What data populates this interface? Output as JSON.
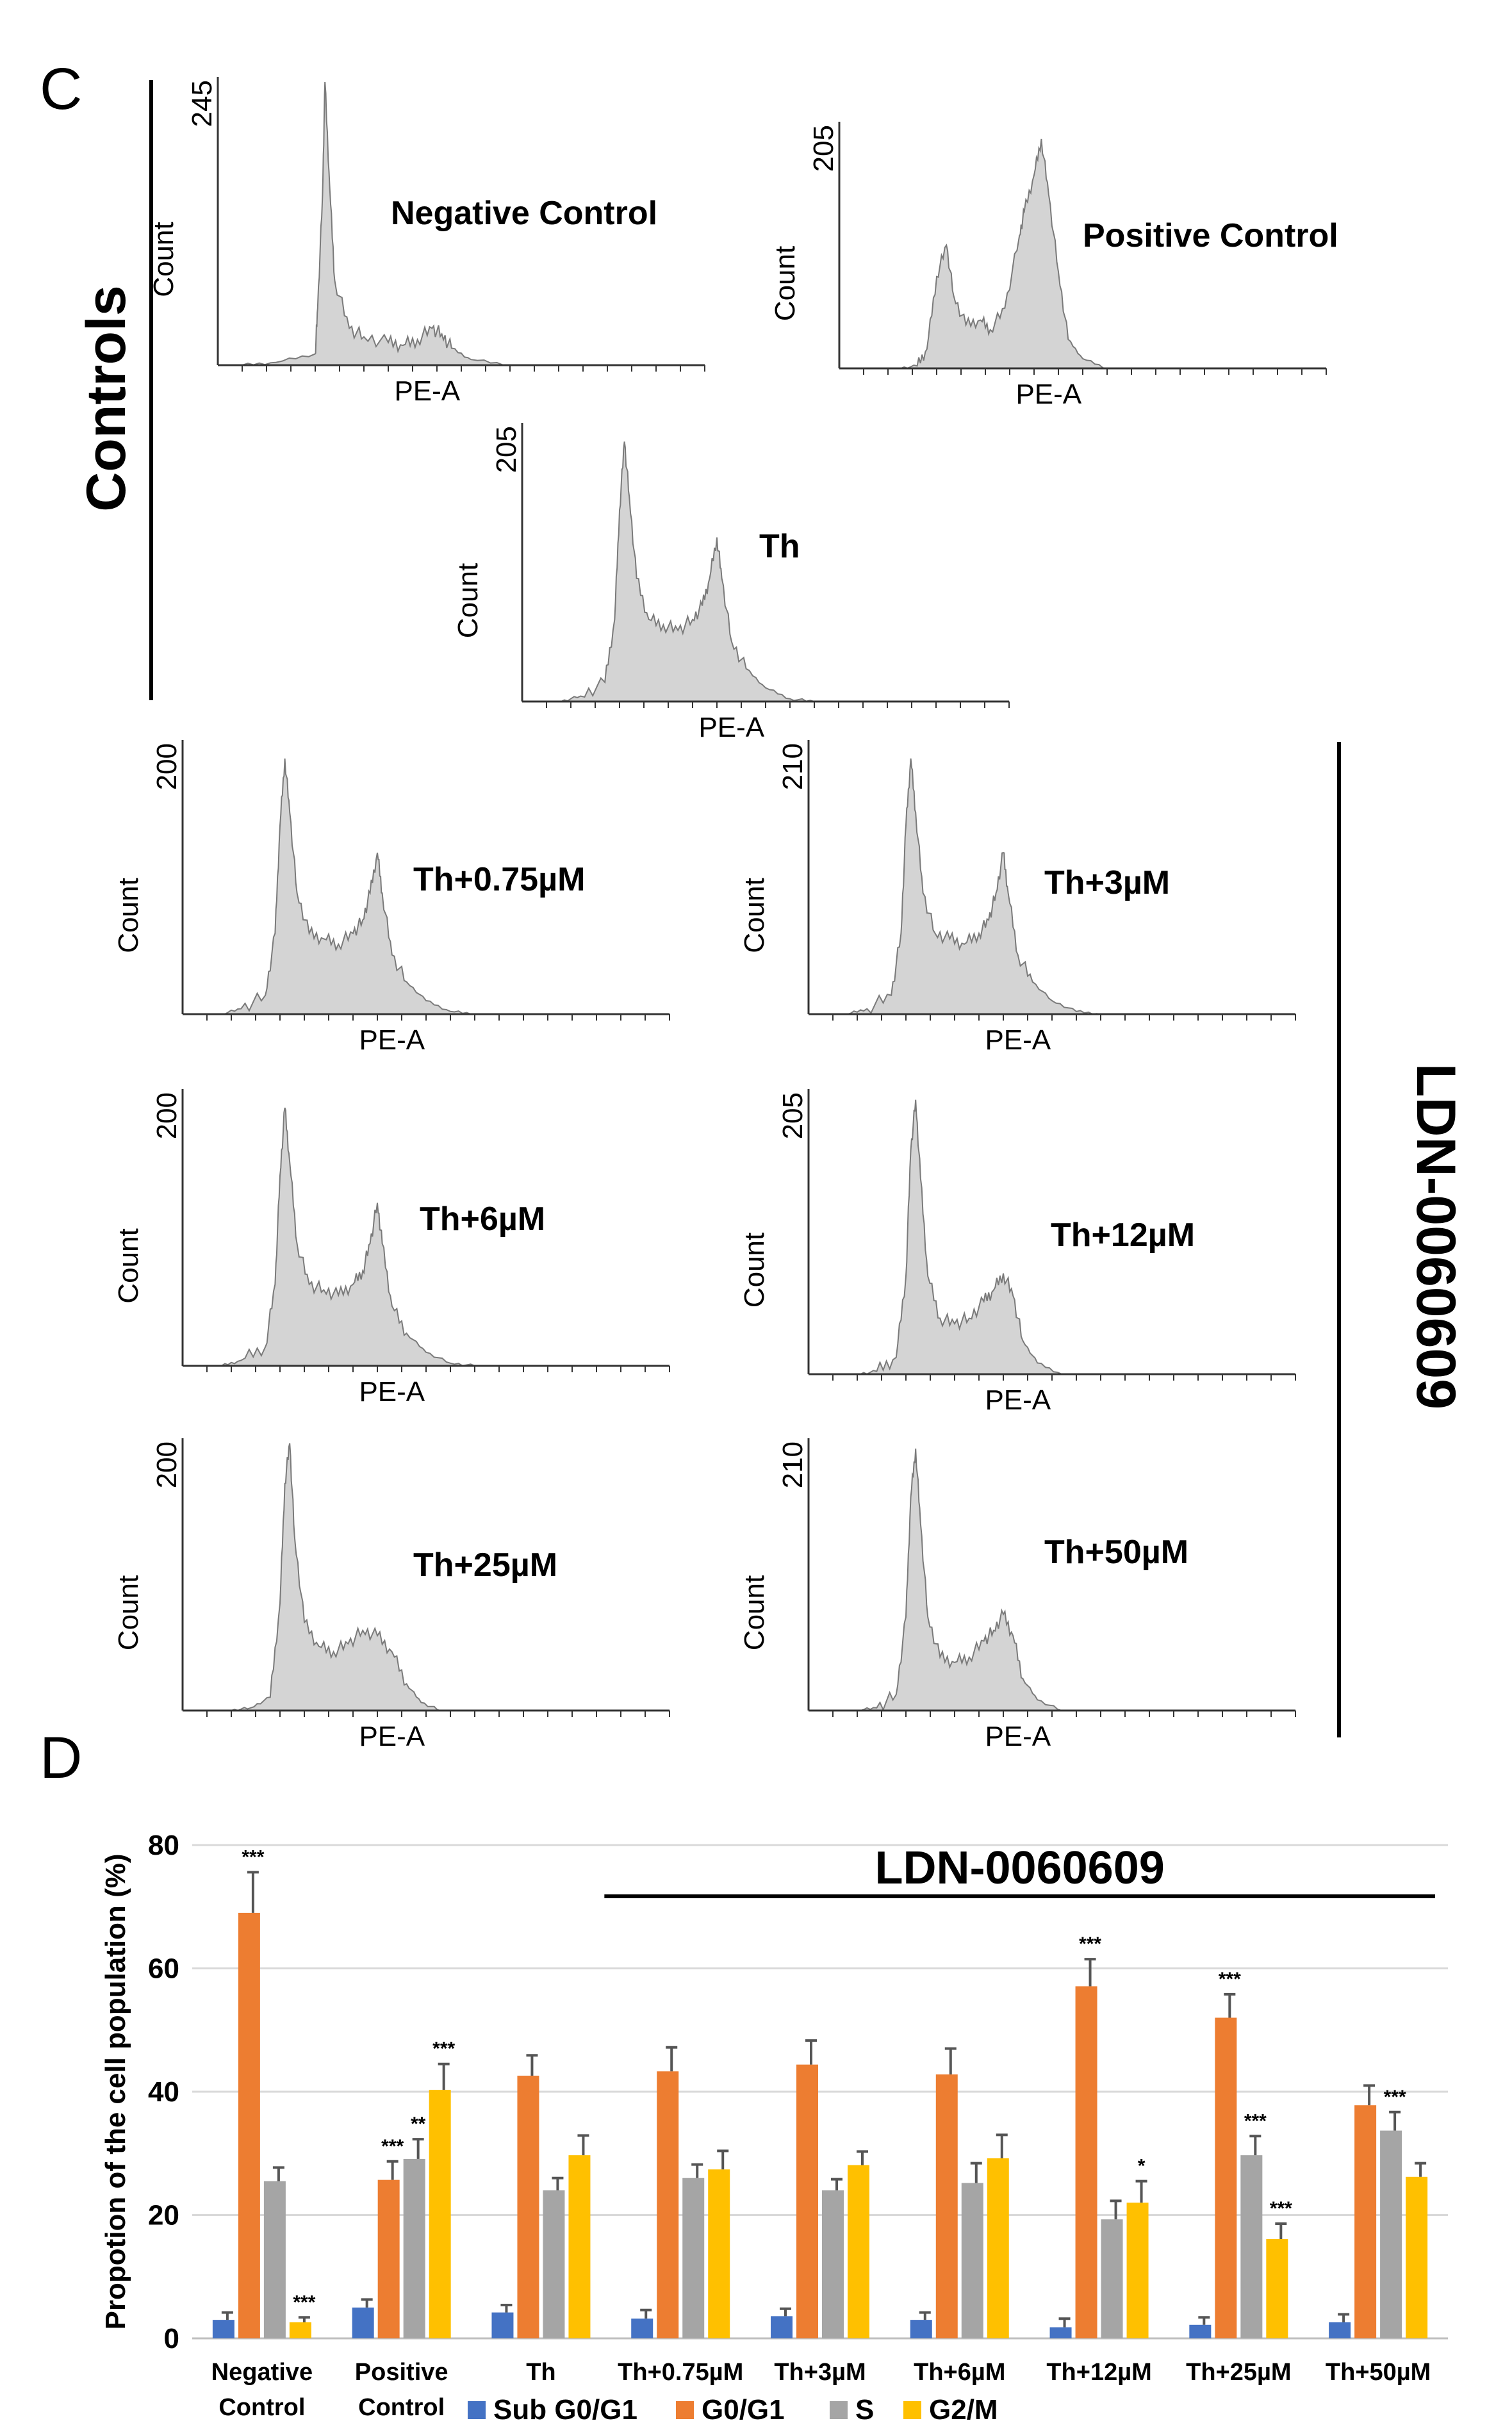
{
  "panel_c_label": "C",
  "panel_d_label": "D",
  "controls_label": "Controls",
  "ldn_label": "LDN-0060609",
  "colors": {
    "hist_fill": "#d4d4d4",
    "hist_line": "#7a7a7a",
    "sub": "#4472c4",
    "g0g1": "#ed7d31",
    "s": "#a5a5a5",
    "g2m": "#ffc000",
    "grid": "#d9d9d9",
    "error": "#555555"
  },
  "histograms": [
    {
      "title": "Negative Control",
      "ymax": "245",
      "ylabel": "Count",
      "xlabel": "PE-A",
      "shape": "neg"
    },
    {
      "title": "Positive Control",
      "ymax": "205",
      "ylabel": "Count",
      "xlabel": "PE-A",
      "shape": "pos"
    },
    {
      "title": "Th",
      "ymax": "205",
      "ylabel": "Count",
      "xlabel": "PE-A",
      "shape": "th"
    },
    {
      "title": "Th+0.75µM",
      "ymax": "200",
      "ylabel": "Count",
      "xlabel": "PE-A",
      "shape": "th"
    },
    {
      "title": "Th+3µM",
      "ymax": "210",
      "ylabel": "Count",
      "xlabel": "PE-A",
      "shape": "th"
    },
    {
      "title": "Th+6µM",
      "ymax": "200",
      "ylabel": "Count",
      "xlabel": "PE-A",
      "shape": "th"
    },
    {
      "title": "Th+12µM",
      "ymax": "205",
      "ylabel": "Count",
      "xlabel": "PE-A",
      "shape": "g1"
    },
    {
      "title": "Th+25µM",
      "ymax": "200",
      "ylabel": "Count",
      "xlabel": "PE-A",
      "shape": "g1low"
    },
    {
      "title": "Th+50µM",
      "ymax": "210",
      "ylabel": "Count",
      "xlabel": "PE-A",
      "shape": "g1"
    }
  ],
  "chart_data": {
    "type": "bar",
    "title": "LDN-0060609",
    "xlabel": "",
    "ylabel": "Propotion of the cell population (%)",
    "ylim": [
      0,
      80
    ],
    "yticks": [
      0,
      20,
      40,
      60,
      80
    ],
    "grid": true,
    "legend_position": "bottom",
    "categories": [
      [
        "Negative",
        "Control"
      ],
      [
        "Positive",
        "Control"
      ],
      [
        "Th"
      ],
      [
        "Th+0.75µM"
      ],
      [
        "Th+3µM"
      ],
      [
        "Th+6µM"
      ],
      [
        "Th+12µM"
      ],
      [
        "Th+25µM"
      ],
      [
        "Th+50µM"
      ]
    ],
    "series": [
      {
        "name": "Sub G0/G1",
        "color": "#4472c4",
        "values": [
          3,
          5,
          4.2,
          3.2,
          3.6,
          3,
          1.8,
          2.2,
          2.6
        ],
        "errors": [
          1.2,
          1.3,
          1.2,
          1.4,
          1.2,
          1.2,
          1.4,
          1.2,
          1.3
        ],
        "sig": [
          "",
          "",
          "",
          "",
          "",
          "",
          "",
          "",
          ""
        ]
      },
      {
        "name": "G0/G1",
        "color": "#ed7d31",
        "values": [
          69,
          25.7,
          42.6,
          43.3,
          44.4,
          42.8,
          57.1,
          52,
          37.8
        ],
        "errors": [
          6.6,
          3,
          3.3,
          3.9,
          3.9,
          4.2,
          4.4,
          3.8,
          3.2
        ],
        "sig": [
          "***",
          "***",
          "",
          "",
          "",
          "",
          "***",
          "***",
          ""
        ]
      },
      {
        "name": "S",
        "color": "#a5a5a5",
        "values": [
          25.5,
          29.1,
          24,
          26,
          24,
          25.2,
          19.3,
          29.7,
          33.7
        ],
        "errors": [
          2.2,
          3.2,
          2,
          2.2,
          1.8,
          3.2,
          3,
          3.1,
          3
        ],
        "sig": [
          "",
          "**",
          "",
          "",
          "",
          "",
          "",
          "***",
          "***"
        ]
      },
      {
        "name": "G2/M",
        "color": "#ffc000",
        "values": [
          2.6,
          40.3,
          29.7,
          27.4,
          28.1,
          29.2,
          22,
          16.1,
          26.2
        ],
        "errors": [
          0.8,
          4.2,
          3.2,
          3,
          2.2,
          3.8,
          3.5,
          2.5,
          2.2
        ],
        "sig": [
          "***",
          "***",
          "",
          "",
          "",
          "",
          "*",
          "***",
          ""
        ]
      }
    ]
  }
}
